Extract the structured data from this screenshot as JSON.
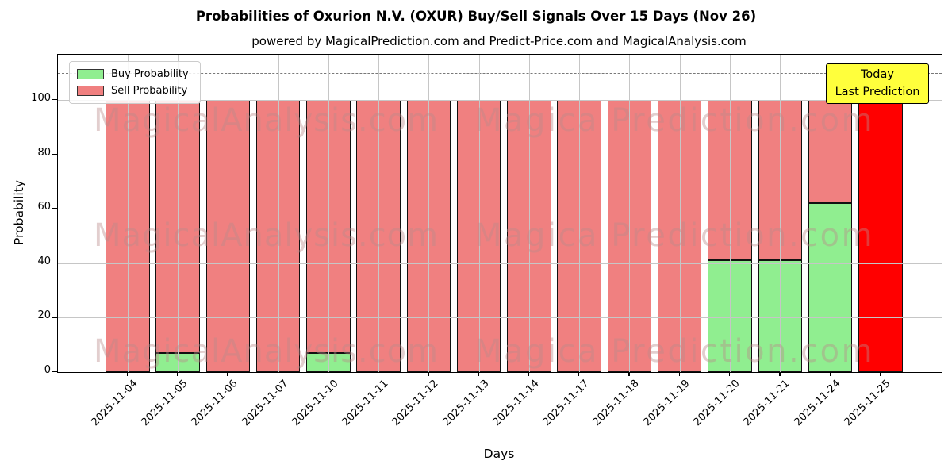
{
  "title": "Probabilities of Oxurion N.V. (OXUR) Buy/Sell Signals Over 15 Days (Nov 26)",
  "subtitle": "powered by MagicalPrediction.com and Predict-Price.com and MagicalAnalysis.com",
  "legend": {
    "buy_label": "Buy Probability",
    "sell_label": "Sell Probability"
  },
  "annotation_box": {
    "line1": "Today",
    "line2": "Last Prediction",
    "bg_color": "#ffff3c",
    "border_color": "#000000"
  },
  "watermarks": {
    "left_text": "MagicalAnalysis.com",
    "right_text": "Magica Prediction.com"
  },
  "axes": {
    "xlabel": "Days",
    "ylabel": "Probability",
    "yticks": [
      0,
      20,
      40,
      60,
      80,
      100
    ],
    "ylim": [
      0,
      116.6
    ],
    "dashed_line_y": 110,
    "grid": true
  },
  "chart_data": {
    "type": "bar",
    "stacked": true,
    "title": "Probabilities of Oxurion N.V. (OXUR) Buy/Sell Signals Over 15 Days (Nov 26)",
    "xlabel": "Days",
    "ylabel": "Probability",
    "categories": [
      "2025-11-04",
      "2025-11-05",
      "2025-11-06",
      "2025-11-07",
      "2025-11-10",
      "2025-11-11",
      "2025-11-12",
      "2025-11-13",
      "2025-11-14",
      "2025-11-17",
      "2025-11-18",
      "2025-11-19",
      "2025-11-20",
      "2025-11-21",
      "2025-11-24",
      "2025-11-25"
    ],
    "series": [
      {
        "name": "Buy Probability",
        "color": "#90ee90",
        "values": [
          0,
          7,
          0,
          0,
          7,
          0,
          0,
          0,
          0,
          0,
          0,
          0,
          41,
          41,
          62,
          0
        ]
      },
      {
        "name": "Sell Probability",
        "color": "#f08080",
        "values": [
          100,
          93,
          100,
          100,
          93,
          100,
          100,
          100,
          100,
          100,
          100,
          100,
          59,
          59,
          38,
          100
        ]
      }
    ],
    "today_index": 15,
    "today_color": "#ff0000",
    "legend_position": "upper left"
  }
}
